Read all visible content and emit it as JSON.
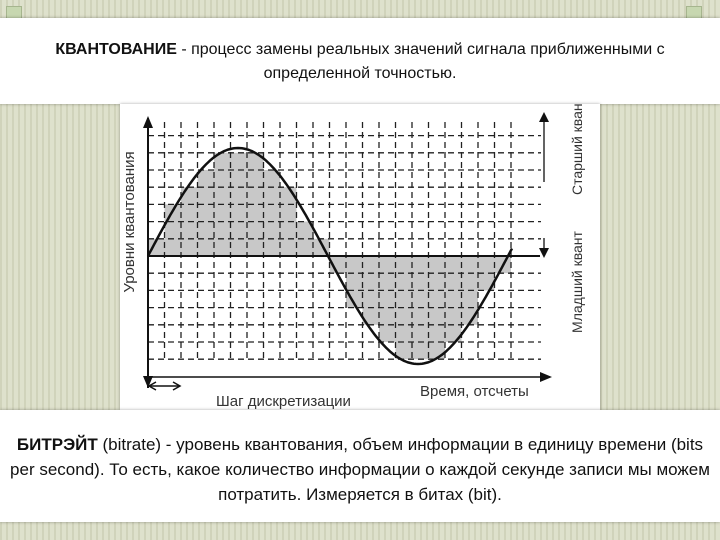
{
  "definition": {
    "term": "КВАНТОВАНИЕ",
    "text": " - процесс замены реальных значений сигнала приближенными с определенной точностью."
  },
  "diagram": {
    "y_axis_label": "Уровни квантования",
    "x_axis_label": "Время, отсчеты",
    "step_label": "Шаг дискретизации",
    "high_quantum_label": "Старший квант",
    "low_quantum_label": "Младший квант",
    "colors": {
      "fill": "#c8c8c8",
      "line": "#111111"
    }
  },
  "bitrate": {
    "term": "БИТРЭЙТ",
    "text": " (bitrate) - уровень квантования, объем информации в единицу времени (bits per second).  То есть, какое количество информации о каждой секунде записи мы можем потратить. Измеряется в битах (bit)."
  }
}
